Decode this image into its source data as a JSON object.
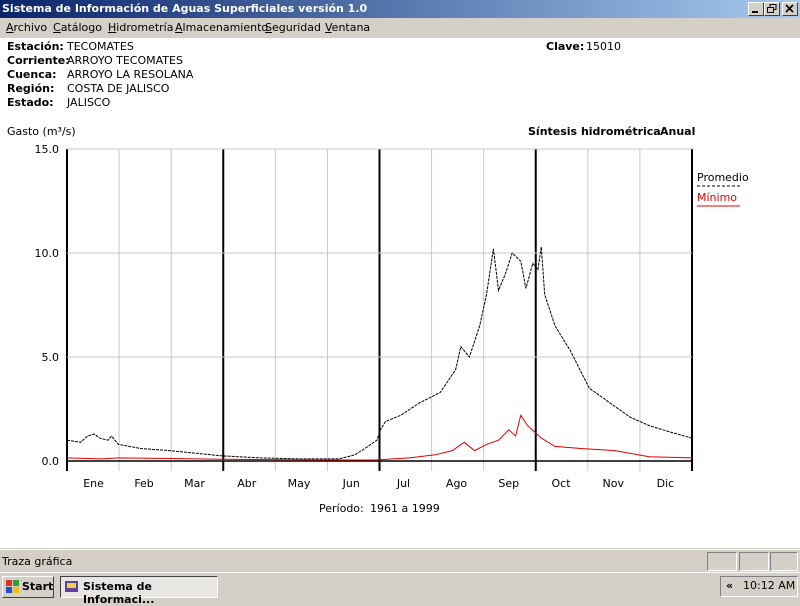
{
  "window": {
    "title": "Sistema de Información de Aguas Superficiales  versión 1.0"
  },
  "menu": [
    "Archivo",
    "Catálogo",
    "Hidrometría",
    "Almacenamiento",
    "Seguridad",
    "Ventana"
  ],
  "station": {
    "fields": [
      {
        "label": "Estación:",
        "value": "TECOMATES"
      },
      {
        "label": "Corriente:",
        "value": "ARROYO TECOMATES"
      },
      {
        "label": "Cuenca:",
        "value": "ARROYO LA RESOLANA"
      },
      {
        "label": "Región:",
        "value": "COSTA DE JALISCO"
      },
      {
        "label": "Estado:",
        "value": "JALISCO"
      }
    ],
    "key_label": "Clave:",
    "key_value": "15010"
  },
  "chart_data": {
    "type": "line",
    "y_label": "Gasto (m³/s)",
    "title": "Síntesis hidrométrica",
    "subtitle": "Anual",
    "period_label": "Período:",
    "period": "1961 a 1999",
    "xlim": [
      0,
      365
    ],
    "xticks": [
      {
        "value": 15.5,
        "label": "Ene"
      },
      {
        "value": 45,
        "label": "Feb"
      },
      {
        "value": 74.5,
        "label": "Mar"
      },
      {
        "value": 105,
        "label": "Abr"
      },
      {
        "value": 135.5,
        "label": "May"
      },
      {
        "value": 166,
        "label": "Jun"
      },
      {
        "value": 196.5,
        "label": "Jul"
      },
      {
        "value": 227.5,
        "label": "Ago"
      },
      {
        "value": 258,
        "label": "Sep"
      },
      {
        "value": 288.5,
        "label": "Oct"
      },
      {
        "value": 319,
        "label": "Nov"
      },
      {
        "value": 349.5,
        "label": "Dic"
      }
    ],
    "ylim": [
      0,
      15
    ],
    "yticks": [
      {
        "value": 0,
        "label": "0.0"
      },
      {
        "value": 5,
        "label": "5.0"
      },
      {
        "value": 10,
        "label": "10.0"
      },
      {
        "value": 15,
        "label": "15.0"
      }
    ],
    "grid": true,
    "series": [
      {
        "name": "Promedio",
        "color": "#000000",
        "dashed": true,
        "x": [
          0,
          8,
          12,
          16,
          19,
          24,
          26,
          30,
          43,
          60,
          78,
          90,
          113,
          136,
          159,
          168,
          174,
          181,
          183,
          186,
          195,
          206,
          218,
          227,
          230,
          235,
          241,
          245,
          249,
          252,
          256,
          260,
          265,
          268,
          272,
          275,
          277,
          279,
          285,
          294,
          305,
          317,
          329,
          340,
          352,
          365
        ],
        "values": [
          1.0,
          0.9,
          1.2,
          1.3,
          1.1,
          1.0,
          1.2,
          0.8,
          0.6,
          0.5,
          0.35,
          0.25,
          0.15,
          0.1,
          0.1,
          0.3,
          0.6,
          1.0,
          1.5,
          1.9,
          2.2,
          2.8,
          3.3,
          4.4,
          5.5,
          5.0,
          6.5,
          8.0,
          10.2,
          8.2,
          9.0,
          10.0,
          9.6,
          8.3,
          9.5,
          9.2,
          10.3,
          8.0,
          6.5,
          5.3,
          3.5,
          2.8,
          2.1,
          1.7,
          1.4,
          1.1
        ]
      },
      {
        "name": "Mínimo",
        "color": "#e00000",
        "dashed": false,
        "x": [
          0,
          20,
          30,
          60,
          90,
          150,
          180,
          190,
          200,
          215,
          225,
          232,
          238,
          245,
          252,
          258,
          262,
          265,
          269,
          273,
          277,
          285,
          300,
          320,
          340,
          365
        ],
        "values": [
          0.15,
          0.1,
          0.15,
          0.12,
          0.08,
          0.05,
          0.05,
          0.1,
          0.15,
          0.3,
          0.5,
          0.9,
          0.5,
          0.8,
          1.0,
          1.5,
          1.2,
          2.2,
          1.7,
          1.4,
          1.1,
          0.7,
          0.6,
          0.5,
          0.2,
          0.15
        ]
      }
    ]
  },
  "status_bar": {
    "text": "Traza gráfica"
  },
  "taskbar": {
    "start": "Start",
    "task": "Sistema de Informaci...",
    "tray_arrow": "«",
    "clock": "10:12 AM"
  }
}
